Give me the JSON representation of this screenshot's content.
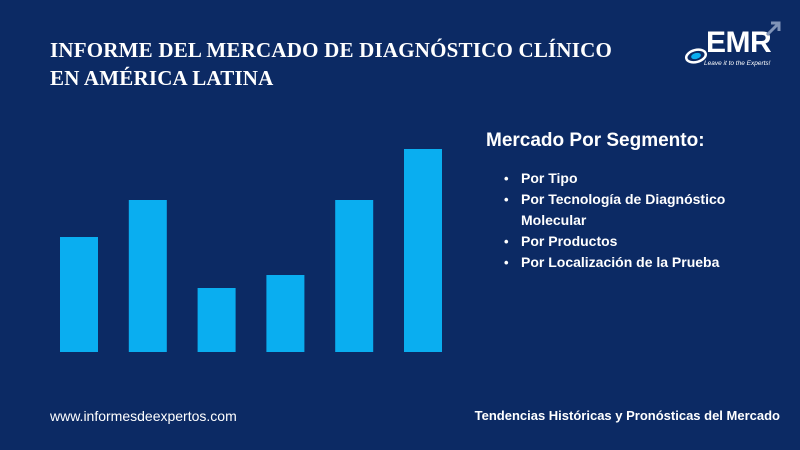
{
  "header": {
    "title_line1": "INFORME DEL MERCADO DE DIAGNÓSTICO CLÍNICO",
    "title_line2": "EN AMÉRICA LATINA"
  },
  "logo": {
    "name": "EMR",
    "tagline": "Leave it to the Experts!",
    "icon": "swirl-logo-icon"
  },
  "segments": {
    "title": "Mercado Por Segmento:",
    "items": [
      "Por Tipo",
      "Por Tecnología de Diagnóstico Molecular",
      "Por Productos",
      "Por Localización de la Prueba"
    ]
  },
  "footer": {
    "website": "www.informesdeexpertos.com",
    "caption": "Tendencias Históricas y Pronósticas del Mercado"
  },
  "colors": {
    "background": "#0c2a64",
    "bar": "#0aaef0"
  },
  "chart_data": {
    "type": "bar",
    "title": "",
    "xlabel": "",
    "ylabel": "",
    "categories": [
      "",
      "",
      "",
      "",
      "",
      ""
    ],
    "values": [
      115,
      152,
      64,
      77,
      152,
      203
    ],
    "ylim": [
      0,
      220
    ],
    "grid": false,
    "axes_visible": false
  }
}
